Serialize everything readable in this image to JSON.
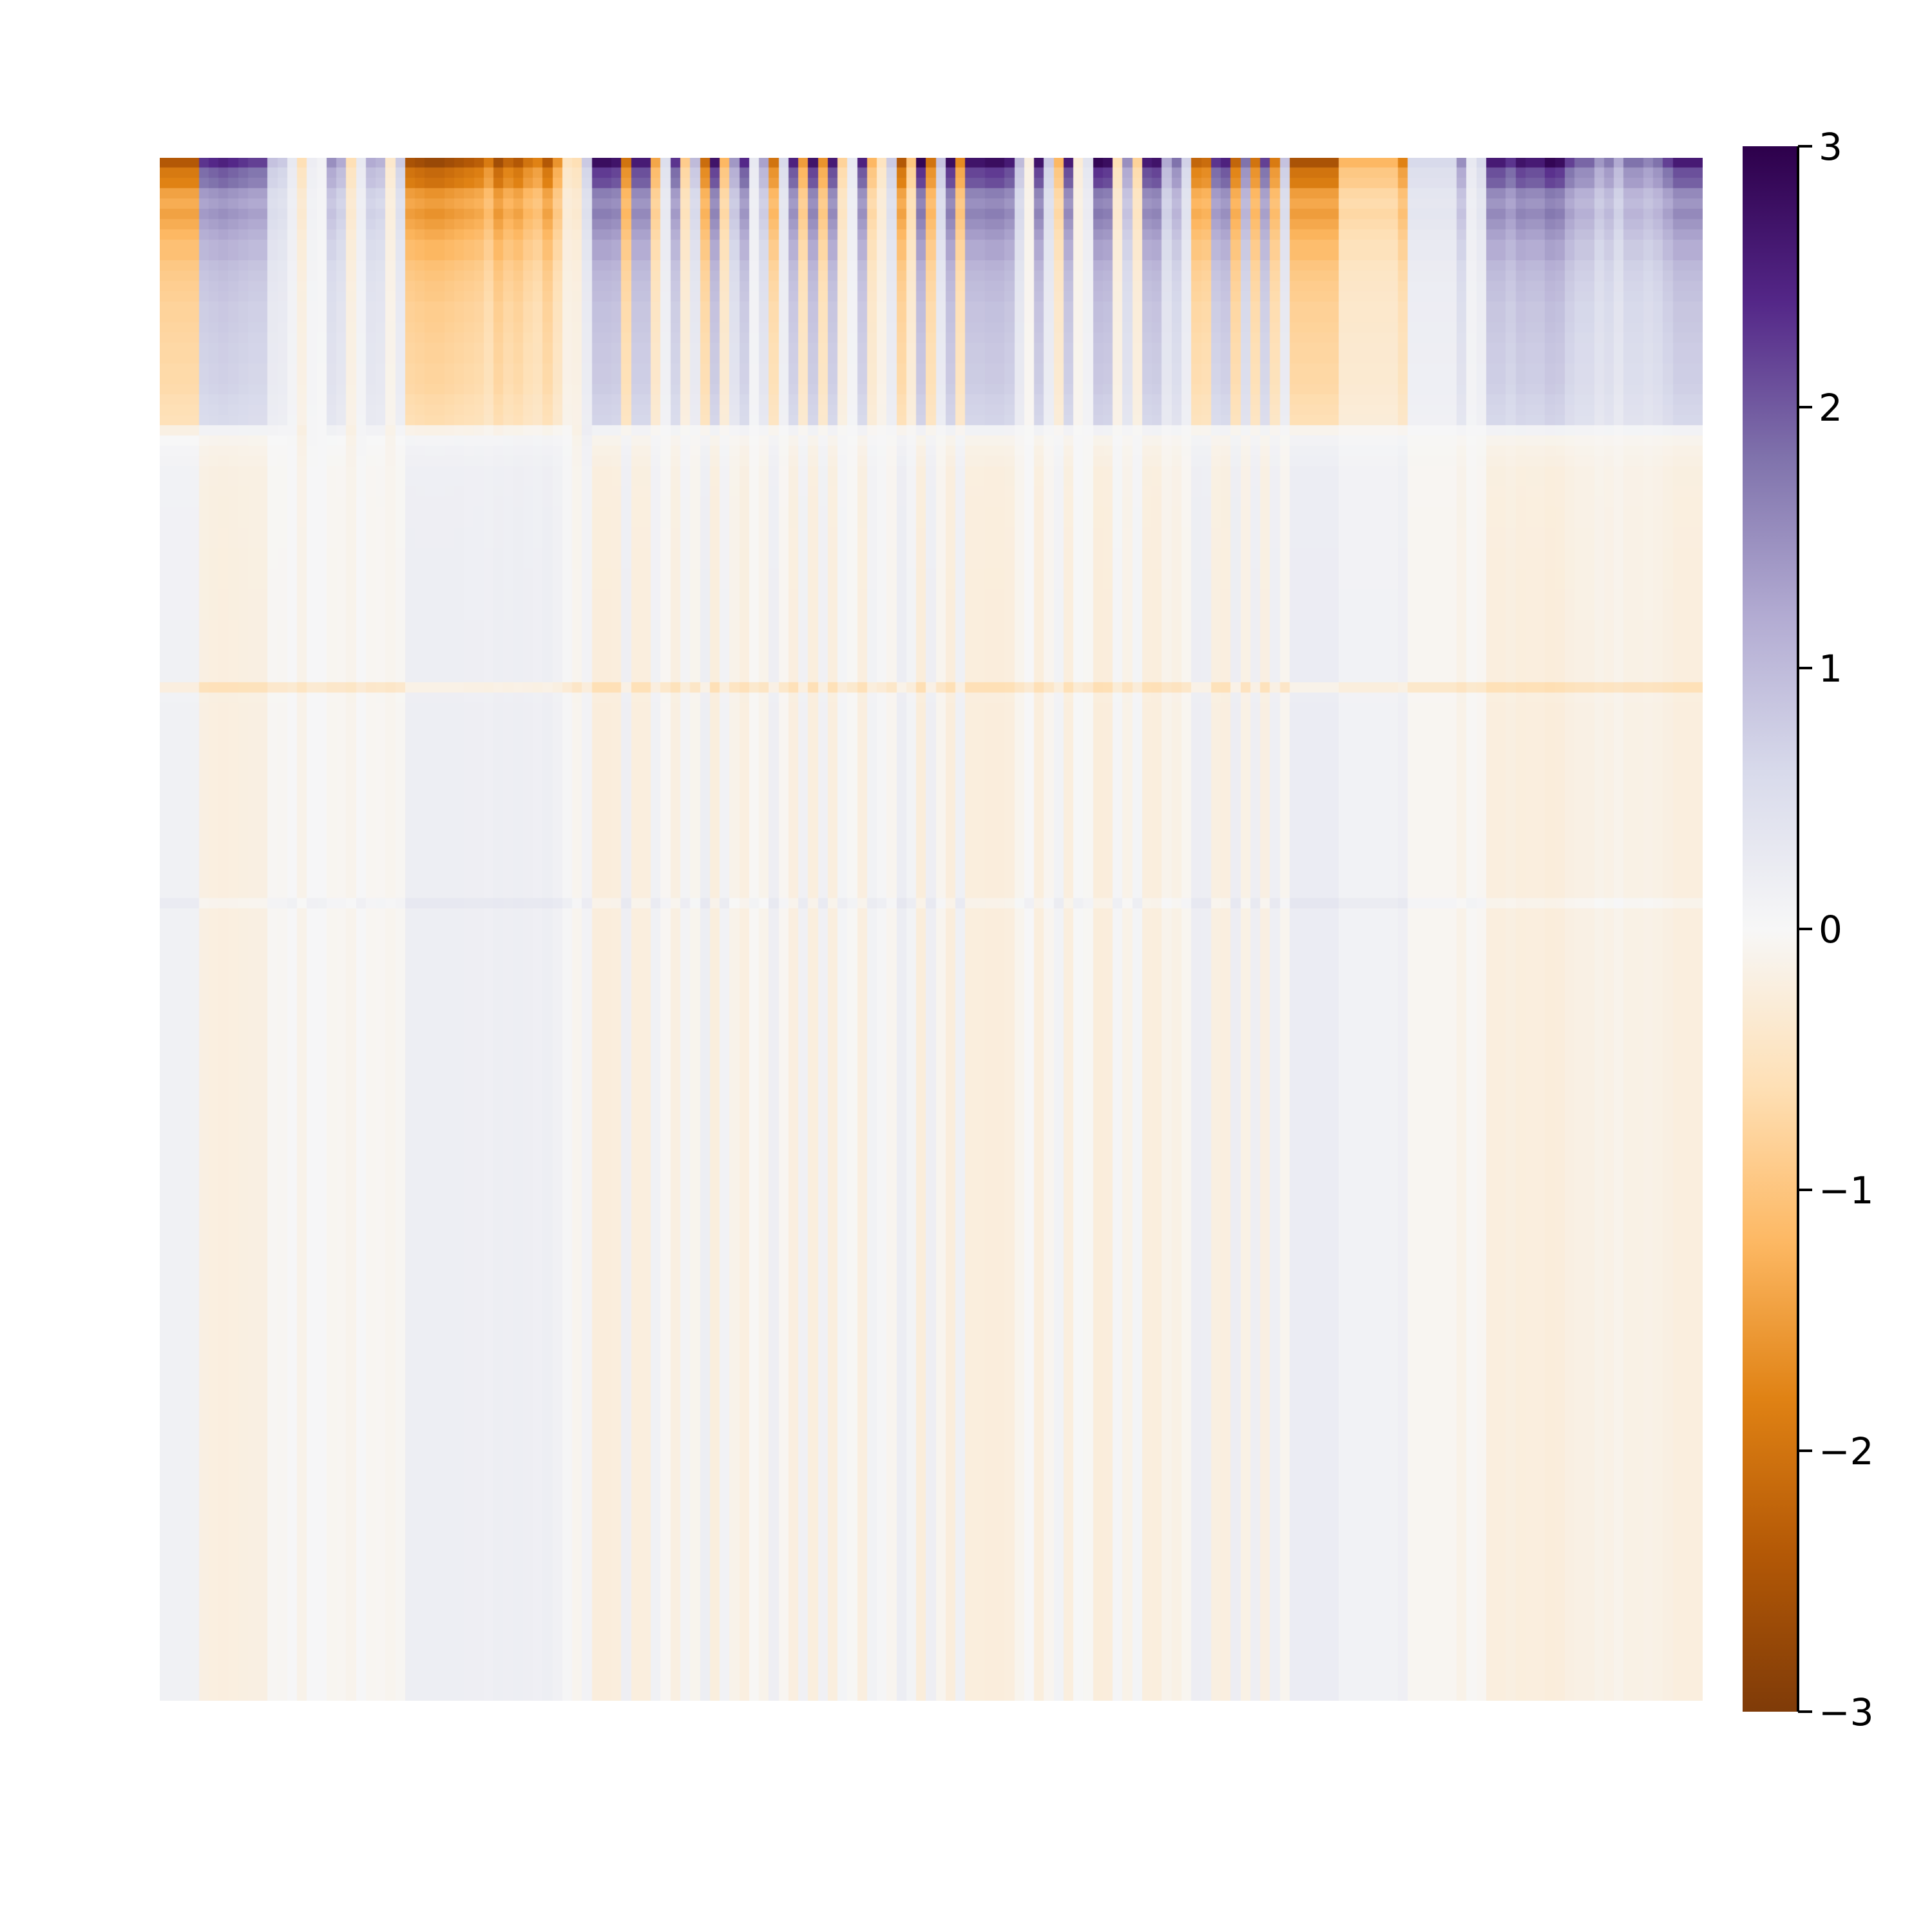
{
  "chart_data": {
    "type": "heatmap",
    "title": "",
    "xlabel": "",
    "ylabel": "",
    "colormap": "PuOr",
    "vmin": -3,
    "vmax": 3,
    "colorbar_ticks": [
      3,
      2,
      1,
      0,
      -1,
      -2,
      -3
    ],
    "colorbar_tick_labels": [
      "3",
      "2",
      "1",
      "0",
      "−1",
      "−2",
      "−3"
    ],
    "n_rows": 164,
    "n_cols": 164,
    "column_profile": [
      -2.4,
      -2.4,
      -2.4,
      -2.4,
      2.3,
      2.4,
      2.5,
      2.4,
      2.3,
      2.2,
      2.2,
      0.9,
      0.8,
      0.3,
      -0.6,
      0.2,
      0.1,
      1.5,
      1.2,
      -0.6,
      0.3,
      1.2,
      1.1,
      -0.4,
      0.8,
      -2.5,
      -2.6,
      -2.7,
      -2.7,
      -2.6,
      -2.5,
      -2.4,
      -2.3,
      -1.9,
      -2.6,
      -2.2,
      -2.4,
      -2.0,
      -1.8,
      -2.4,
      -1.6,
      -0.5,
      -0.6,
      0.8,
      2.8,
      2.8,
      2.7,
      -2.0,
      2.6,
      2.6,
      -1.4,
      0.5,
      2.3,
      -0.9,
      1.0,
      -2.1,
      2.7,
      -1.2,
      1.4,
      2.4,
      0.3,
      1.3,
      -2.0,
      0.6,
      2.5,
      -1.5,
      2.7,
      -1.6,
      2.6,
      -0.8,
      0.3,
      2.5,
      -1.2,
      -0.5,
      0.8,
      -2.4,
      -1.0,
      2.9,
      -2.0,
      0.9,
      2.8,
      -1.7,
      2.7,
      2.7,
      2.8,
      2.8,
      2.6,
      1.0,
      -0.2,
      2.7,
      0.8,
      -1.2,
      2.6,
      -0.3,
      0.4,
      2.9,
      2.8,
      -0.6,
      1.5,
      -0.8,
      2.6,
      2.7,
      1.2,
      1.8,
      0.7,
      -2.2,
      -2.1,
      2.3,
      2.5,
      -2.2,
      1.8,
      -2.0,
      2.2,
      -1.9,
      0.9,
      -2.5,
      -2.5,
      -2.5,
      -2.5,
      -2.5,
      -1.2,
      -1.2,
      -1.2,
      -1.2,
      -1.2,
      -1.2,
      -1.8,
      0.6,
      0.6,
      0.6,
      0.6,
      0.6,
      1.5,
      0.3,
      0.6,
      2.6,
      2.6,
      2.3,
      2.7,
      2.6,
      2.6,
      2.9,
      2.8,
      2.2,
      1.9,
      1.9,
      1.4,
      1.7,
      1.2,
      1.8,
      1.8,
      1.6,
      1.8,
      2.2,
      2.6,
      2.6,
      2.6
    ],
    "row_profile": [
      1.0,
      0.8,
      0.75,
      0.6,
      0.55,
      0.6,
      0.55,
      0.5,
      0.45,
      0.45,
      0.4,
      0.38,
      0.36,
      0.35,
      0.33,
      0.33,
      0.32,
      0.31,
      0.3,
      0.3,
      0.29,
      0.29,
      0.28,
      0.26,
      0.25,
      0.24,
      0.14,
      0.06,
      0.04,
      0.03,
      0.018,
      0.018,
      0.017,
      0.016,
      0.015,
      0.015,
      0.014,
      0.014,
      0.013,
      0.013,
      0.012,
      0.012,
      0.011,
      0.011,
      0.011,
      0.01,
      0.01,
      0.01,
      0.01,
      0.01,
      0.01,
      0.01,
      0.016,
      0.01,
      0.01,
      0.01,
      0.01,
      0.01,
      0.01,
      0.01,
      0.01,
      0.01,
      0.01,
      0.01,
      0.01,
      0.01,
      0.01,
      0.01,
      0.01,
      0.01,
      0.01,
      0.01,
      0.01,
      0.01,
      0.01,
      0.01,
      0.01,
      0.01,
      0.01,
      0.01,
      0.01,
      0.01,
      0.01,
      0.01,
      0.01,
      0.01,
      0.01,
      0.01,
      0.01,
      0.01,
      0.01,
      0.01,
      0.01,
      0.01,
      0.01,
      0.01,
      0.01,
      0.01,
      0.01,
      0.01,
      0.01,
      0.01,
      0.01,
      0.01,
      0.01,
      0.01,
      0.01,
      0.01,
      0.01,
      0.01,
      0.01,
      0.01,
      0.01,
      0.01,
      0.01,
      0.01,
      0.01,
      0.01,
      0.01,
      0.01,
      0.01,
      0.01,
      0.01,
      0.01,
      0.01,
      0.01,
      0.01,
      0.01,
      0.01,
      0.01,
      0.01,
      0.01,
      0.01,
      0.01,
      0.01,
      0.01,
      0.01,
      0.01,
      0.01,
      0.01,
      0.01,
      0.01,
      0.01,
      0.01,
      0.01,
      0.01,
      0.01,
      0.01,
      0.01,
      0.01
    ],
    "column_band_after_top": [
      0.15,
      0.15,
      0.15,
      0.15,
      -0.22,
      -0.24,
      -0.25,
      -0.24,
      -0.23,
      -0.22,
      -0.22,
      -0.05,
      -0.05,
      0.01,
      -0.12,
      0.02,
      0.01,
      -0.08,
      -0.07,
      -0.1,
      0.02,
      -0.07,
      -0.06,
      -0.08,
      -0.05,
      0.22,
      0.22,
      0.22,
      0.22,
      0.22,
      0.22,
      0.2,
      0.2,
      0.18,
      0.22,
      0.2,
      0.22,
      0.2,
      0.18,
      0.22,
      0.16,
      0.05,
      -0.08,
      0.09,
      -0.28,
      -0.28,
      -0.27,
      0.2,
      -0.26,
      -0.26,
      0.14,
      -0.05,
      -0.23,
      0.09,
      -0.1,
      0.21,
      -0.27,
      0.12,
      -0.14,
      -0.24,
      -0.03,
      -0.13,
      0.2,
      -0.06,
      -0.25,
      0.15,
      -0.27,
      0.16,
      -0.26,
      0.08,
      -0.03,
      -0.25,
      0.12,
      0.05,
      -0.08,
      0.24,
      0.1,
      -0.29,
      0.2,
      -0.09,
      -0.28,
      0.17,
      -0.27,
      -0.27,
      -0.28,
      -0.28,
      -0.26,
      -0.1,
      0.02,
      -0.27,
      -0.08,
      0.12,
      -0.26,
      0.03,
      -0.04,
      -0.29,
      -0.28,
      0.06,
      -0.15,
      0.08,
      -0.26,
      -0.27,
      -0.12,
      -0.18,
      -0.07,
      0.22,
      0.21,
      -0.23,
      -0.25,
      0.22,
      -0.18,
      0.2,
      -0.22,
      0.19,
      -0.09,
      0.25,
      0.25,
      0.25,
      0.25,
      0.25,
      0.12,
      0.12,
      0.12,
      0.12,
      0.12,
      0.12,
      0.18,
      -0.06,
      -0.06,
      -0.06,
      -0.06,
      -0.06,
      -0.15,
      -0.03,
      -0.06,
      -0.26,
      -0.26,
      -0.23,
      -0.27,
      -0.26,
      -0.26,
      -0.29,
      -0.28,
      -0.22,
      -0.19,
      -0.19,
      -0.14,
      -0.17,
      -0.12,
      -0.18,
      -0.18,
      -0.16,
      -0.18,
      -0.22,
      -0.26,
      -0.26,
      -0.26
    ],
    "special_rows": [
      {
        "row": 51,
        "offset": -0.35
      },
      {
        "row": 72,
        "offset": 0.12
      }
    ]
  }
}
